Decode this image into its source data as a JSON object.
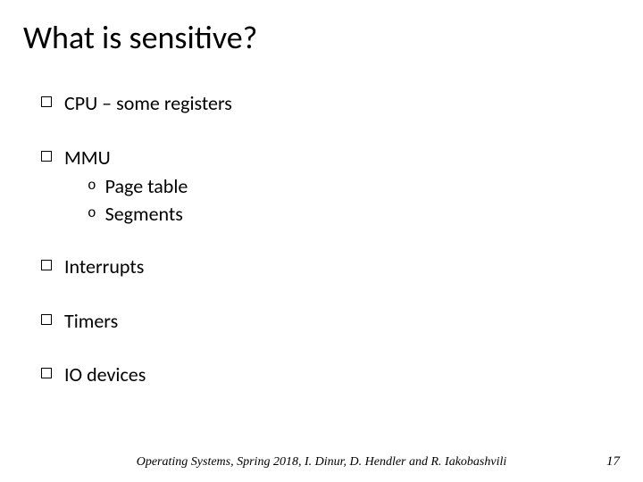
{
  "title": "What is sensitive?",
  "bullets": {
    "b1": "CPU – some registers",
    "b2": "MMU",
    "b2_sub1": "Page table",
    "b2_sub2": "Segments",
    "b3": "Interrupts",
    "b4": "Timers",
    "b5": "IO devices"
  },
  "footer": "Operating Systems, Spring 2018, I. Dinur, D. Hendler and R. Iakobashvili",
  "page_number": "17",
  "style": {
    "title_fontsize": 36,
    "bullet_fontsize": 22,
    "footer_fontsize": 14,
    "background_color": "#ffffff",
    "text_color": "#000000",
    "bullet_marker": "hollow-square",
    "sub_marker": "o"
  }
}
